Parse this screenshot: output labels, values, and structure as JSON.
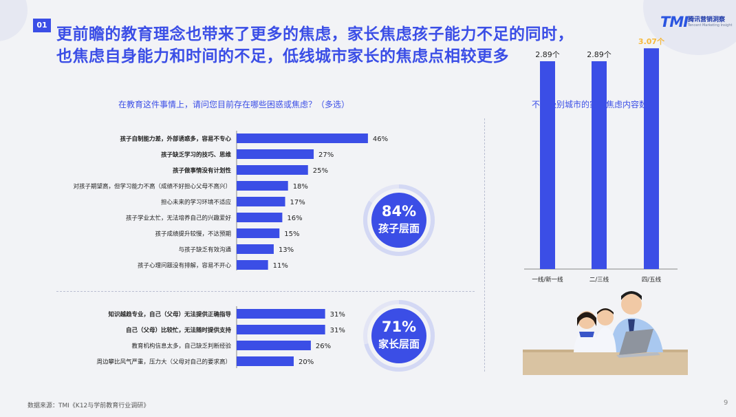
{
  "slide_number": "01",
  "title_lines": [
    "更前瞻的教育理念也带来了更多的焦虑，家长焦虑孩子能力不足的同时，",
    "也焦虑自身能力和时间的不足，低线城市家长的焦虑点相较更多"
  ],
  "logo": {
    "mark": "TMI",
    "cn": "腾讯营销洞察",
    "en": "Tencent Marketing Insight"
  },
  "badges": {
    "child": {
      "percent": "84%",
      "label": "孩子层面"
    },
    "parent": {
      "percent": "71%",
      "label": "家长层面"
    }
  },
  "source": "数据来源：TMI《K12与学前教育行业调研》",
  "page_number": "9",
  "colors": {
    "accent": "#3b4ee6",
    "highlight": "#f6b93b",
    "ring": "#d3d8f4"
  },
  "chart_data": [
    {
      "type": "bar",
      "orientation": "horizontal",
      "title": "在教育这件事情上，请问您目前存在哪些困惑或焦虑？（多选）",
      "xlabel": "",
      "ylabel": "",
      "xlim": [
        0,
        100
      ],
      "groups": [
        {
          "badge": "84% 孩子层面",
          "categories": [
            "孩子自制能力差，外部诱惑多，容易不专心",
            "孩子缺乏学习的技巧、思维",
            "孩子做事情没有计划性",
            "对孩子期望高，但学习能力不高（成绩不好担心父母不高兴）",
            "担心未来的学习环境不适应",
            "孩子学业太忙，无法培养自己的兴趣爱好",
            "孩子成绩提升较慢，不达预期",
            "与孩子缺乏有效沟通",
            "孩子心理问题没有排解，容易不开心"
          ],
          "values": [
            46,
            27,
            25,
            18,
            17,
            16,
            15,
            13,
            11
          ],
          "value_labels": [
            "46%",
            "27%",
            "25%",
            "18%",
            "17%",
            "16%",
            "15%",
            "13%",
            "11%"
          ],
          "bold": [
            true,
            true,
            true,
            false,
            false,
            false,
            false,
            false,
            false
          ]
        },
        {
          "badge": "71% 家长层面",
          "categories": [
            "知识越趋专业，自己（父母）无法提供正确指导",
            "自己（父母）比较忙，无法随时提供支持",
            "教育机构信息太多，自己缺乏判断经验",
            "周边攀比风气严重，压力大（父母对自己的要求高）"
          ],
          "values": [
            31,
            31,
            26,
            20
          ],
          "value_labels": [
            "31%",
            "31%",
            "26%",
            "20%"
          ],
          "bold": [
            true,
            true,
            false,
            false
          ]
        }
      ]
    },
    {
      "type": "bar",
      "orientation": "vertical",
      "title": "不同级别城市的家长焦虑内容数量",
      "xlabel": "",
      "ylabel": "",
      "ylim": [
        0,
        5
      ],
      "categories": [
        "一线/新一线",
        "二/三线",
        "四/五线"
      ],
      "values": [
        2.89,
        2.89,
        3.07
      ],
      "value_labels": [
        "2.89个",
        "2.89个",
        "3.07个"
      ],
      "highlight_index": 2
    }
  ]
}
